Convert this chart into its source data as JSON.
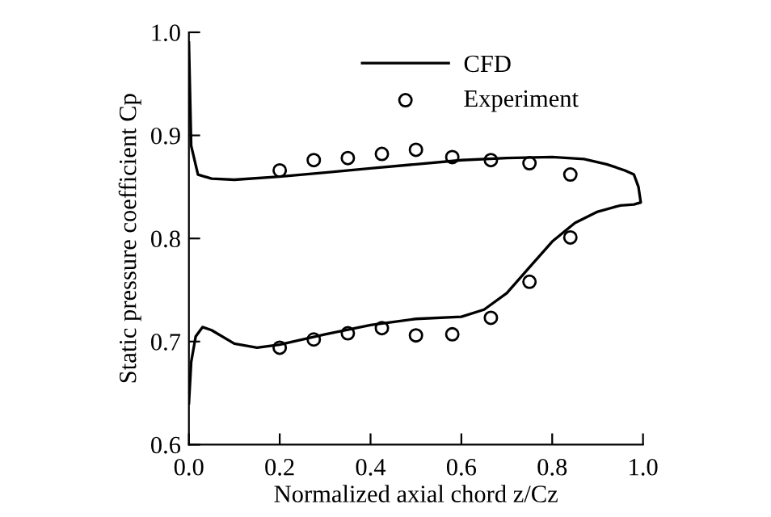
{
  "chart_data": {
    "type": "line",
    "xlabel": "Normalized axial chord z/Cz",
    "ylabel": "Static pressure coefficient Cp",
    "xlim": [
      0,
      1
    ],
    "ylim": [
      0.6,
      1.0
    ],
    "xticks": [
      {
        "value": 0,
        "label": "0.0"
      },
      {
        "value": 0.2,
        "label": "0.2"
      },
      {
        "value": 0.4,
        "label": "0.4"
      },
      {
        "value": 0.6,
        "label": "0.6"
      },
      {
        "value": 0.8,
        "label": "0.8"
      },
      {
        "value": 1.0,
        "label": "1.0"
      }
    ],
    "yticks": [
      {
        "value": 0.6,
        "label": "0.6"
      },
      {
        "value": 0.7,
        "label": "0.7"
      },
      {
        "value": 0.8,
        "label": "0.8"
      },
      {
        "value": 0.9,
        "label": "0.9"
      },
      {
        "value": 1.0,
        "label": "1.0"
      }
    ],
    "legend": "top",
    "grid": false,
    "series": [
      {
        "name": "CFD",
        "color": "#000000",
        "marker": "none",
        "line_style": "solid",
        "x": [
          0.0,
          0.005,
          0.02,
          0.05,
          0.1,
          0.2,
          0.3,
          0.4,
          0.5,
          0.6,
          0.7,
          0.8,
          0.87,
          0.92,
          0.96,
          0.98,
          0.99,
          0.995,
          0.98,
          0.95,
          0.9,
          0.85,
          0.8,
          0.75,
          0.7,
          0.65,
          0.6,
          0.5,
          0.4,
          0.3,
          0.2,
          0.15,
          0.1,
          0.05,
          0.03,
          0.015,
          0.005,
          0.0
        ],
        "values": [
          0.99,
          0.89,
          0.862,
          0.858,
          0.857,
          0.86,
          0.864,
          0.868,
          0.872,
          0.876,
          0.878,
          0.879,
          0.877,
          0.872,
          0.866,
          0.862,
          0.85,
          0.835,
          0.833,
          0.832,
          0.826,
          0.815,
          0.797,
          0.772,
          0.747,
          0.731,
          0.724,
          0.722,
          0.716,
          0.707,
          0.697,
          0.694,
          0.698,
          0.711,
          0.714,
          0.705,
          0.68,
          0.64
        ]
      },
      {
        "name": "Experiment",
        "type": "scatter",
        "color": "#000000",
        "marker": "circle",
        "x": [
          0.2,
          0.275,
          0.35,
          0.425,
          0.5,
          0.58,
          0.665,
          0.75,
          0.84,
          0.2,
          0.275,
          0.35,
          0.425,
          0.5,
          0.58,
          0.665,
          0.75,
          0.84
        ],
        "values": [
          0.866,
          0.876,
          0.878,
          0.882,
          0.886,
          0.879,
          0.876,
          0.873,
          0.862,
          0.694,
          0.702,
          0.708,
          0.713,
          0.706,
          0.707,
          0.723,
          0.758,
          0.801
        ]
      }
    ]
  }
}
